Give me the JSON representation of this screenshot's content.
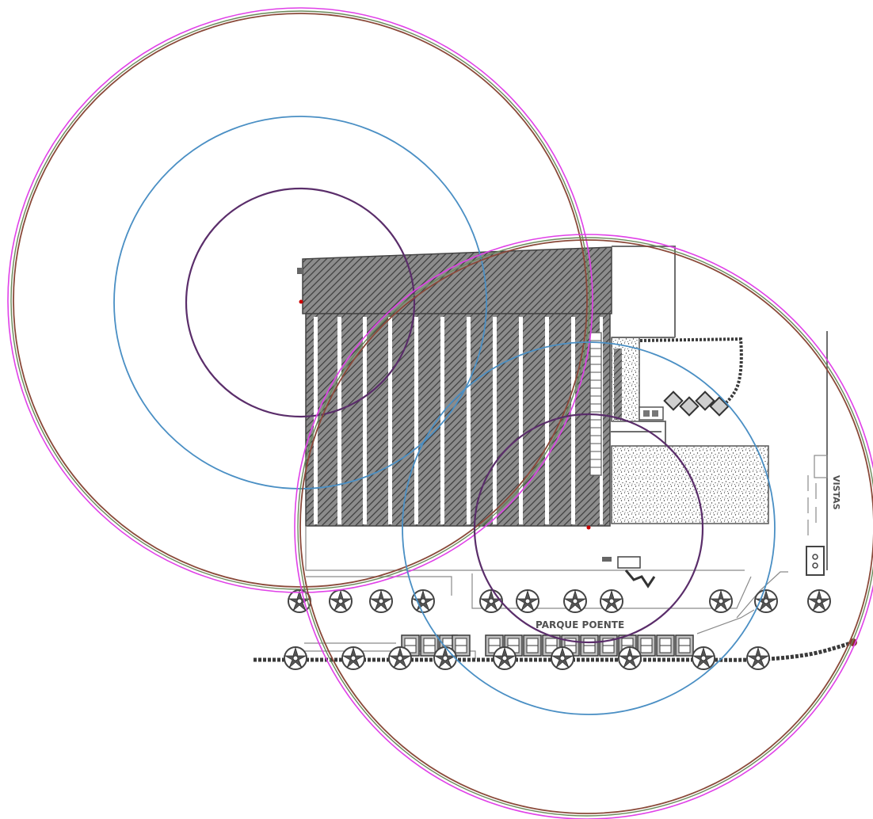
{
  "labels": {
    "park": "PARQUE POENTE",
    "views": "VISTAS"
  },
  "colors": {
    "background": "#ffffff",
    "ring_magenta": "#e040e8",
    "ring_brown": "#8b4a3a",
    "ring_green": "#6a8a5a",
    "ring_blue": "#4a8fc4",
    "ring_purple": "#5a2d6a",
    "hatch": "#555555",
    "drawing": "#6e6e6e",
    "marker_red": "#cc0000"
  }
}
